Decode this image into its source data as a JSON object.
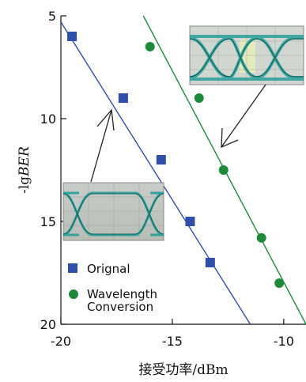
{
  "chart_data": {
    "type": "scatter",
    "xlabel": "接受功率/dBm",
    "ylabel_prefix": "-lg",
    "ylabel_italic": "BER",
    "xlim": [
      -20,
      -9
    ],
    "ylim": [
      5,
      20
    ],
    "y_inverted": true,
    "x_ticks": [
      -20,
      -15,
      -10
    ],
    "x_tick_labels": [
      "-20",
      "-15",
      "-10"
    ],
    "y_ticks": [
      5,
      10,
      15,
      20
    ],
    "grid": false,
    "legend_position": "bottom-left",
    "series": [
      {
        "name": "Orignal",
        "marker": "square",
        "color": "#2f4fa8",
        "points": [
          {
            "x": -19.5,
            "y": 6.0
          },
          {
            "x": -17.2,
            "y": 9.0
          },
          {
            "x": -15.5,
            "y": 12.0
          },
          {
            "x": -14.2,
            "y": 15.0
          },
          {
            "x": -13.3,
            "y": 17.0
          }
        ],
        "fit_line": {
          "x1": -20.0,
          "y1": 5.3,
          "x2": -11.5,
          "y2": 20.0
        }
      },
      {
        "name_lines": [
          "Wavelength",
          "Conversion"
        ],
        "marker": "circle",
        "color": "#1d8a3a",
        "points": [
          {
            "x": -16.0,
            "y": 6.5
          },
          {
            "x": -13.8,
            "y": 9.0
          },
          {
            "x": -12.7,
            "y": 12.5
          },
          {
            "x": -11.0,
            "y": 15.8
          },
          {
            "x": -10.2,
            "y": 18.0
          }
        ],
        "fit_line": {
          "x1": -16.3,
          "y1": 5.0,
          "x2": -9.0,
          "y2": 20.0
        }
      }
    ],
    "insets": [
      {
        "name": "eye-diagram-original",
        "position": "left-middle"
      },
      {
        "name": "eye-diagram-wavelength-conversion",
        "position": "top-right"
      }
    ]
  }
}
